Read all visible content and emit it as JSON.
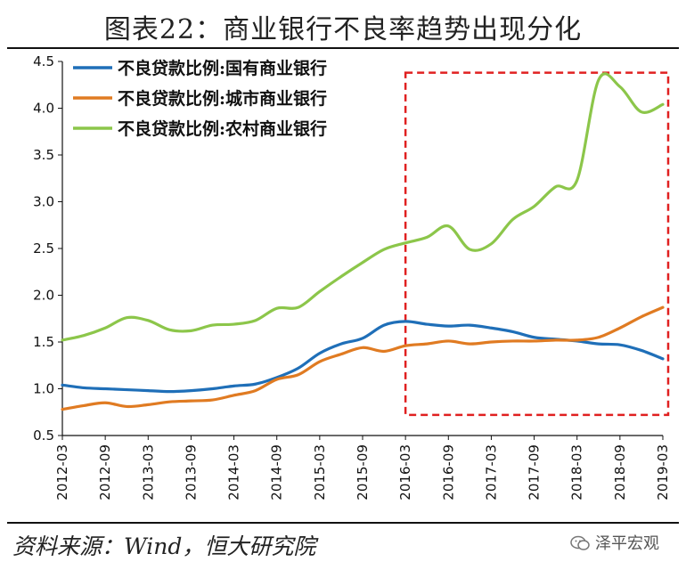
{
  "title": "图表22：商业银行不良率趋势出现分化",
  "source": "资料来源：Wind，恒大研究院",
  "watermark": "泽平宏观",
  "colors": {
    "guoyou": "#1f6fb8",
    "chengshi": "#e07b22",
    "nongcun": "#8cc64a",
    "highlight": "#e02020",
    "axis": "#111111"
  },
  "chart_data": {
    "type": "line",
    "title": "图表22：商业银行不良率趋势出现分化",
    "xlabel": "",
    "ylabel": "",
    "ylim": [
      0.5,
      4.5
    ],
    "yticks": [
      "0.5",
      "1.0",
      "1.5",
      "2.0",
      "2.5",
      "3.0",
      "3.5",
      "4.0",
      "4.5"
    ],
    "x": [
      "2012-03",
      "2012-06",
      "2012-09",
      "2012-12",
      "2013-03",
      "2013-06",
      "2013-09",
      "2013-12",
      "2014-03",
      "2014-06",
      "2014-09",
      "2014-12",
      "2015-03",
      "2015-06",
      "2015-09",
      "2015-12",
      "2016-03",
      "2016-06",
      "2016-09",
      "2016-12",
      "2017-03",
      "2017-06",
      "2017-09",
      "2017-12",
      "2018-03",
      "2018-06",
      "2018-09",
      "2018-12",
      "2019-03"
    ],
    "xticks": [
      "2012-03",
      "2012-09",
      "2013-03",
      "2013-09",
      "2014-03",
      "2014-09",
      "2015-03",
      "2015-09",
      "2016-03",
      "2016-09",
      "2017-03",
      "2017-09",
      "2018-03",
      "2018-09",
      "2019-03"
    ],
    "legend_position": "top-left",
    "grid": false,
    "highlight_box": {
      "x_start": "2016-03",
      "x_end": "2019-03",
      "y_start": 0.72,
      "y_end": 4.38
    },
    "series": [
      {
        "name": "不良贷款比例:国有商业银行",
        "key": "guoyou",
        "values": [
          1.04,
          1.01,
          1.0,
          0.99,
          0.98,
          0.97,
          0.98,
          1.0,
          1.03,
          1.05,
          1.12,
          1.22,
          1.38,
          1.48,
          1.54,
          1.68,
          1.72,
          1.69,
          1.67,
          1.68,
          1.65,
          1.61,
          1.55,
          1.53,
          1.51,
          1.48,
          1.47,
          1.41,
          1.32
        ]
      },
      {
        "name": "不良贷款比例:城市商业银行",
        "key": "chengshi",
        "values": [
          0.78,
          0.82,
          0.85,
          0.81,
          0.83,
          0.86,
          0.87,
          0.88,
          0.93,
          0.98,
          1.1,
          1.15,
          1.29,
          1.37,
          1.44,
          1.4,
          1.46,
          1.48,
          1.51,
          1.48,
          1.5,
          1.51,
          1.51,
          1.52,
          1.52,
          1.55,
          1.65,
          1.77,
          1.87
        ]
      },
      {
        "name": "不良贷款比例:农村商业银行",
        "key": "nongcun",
        "values": [
          1.52,
          1.57,
          1.65,
          1.76,
          1.73,
          1.63,
          1.62,
          1.68,
          1.69,
          1.73,
          1.86,
          1.87,
          2.04,
          2.2,
          2.35,
          2.49,
          2.56,
          2.62,
          2.74,
          2.49,
          2.55,
          2.81,
          2.95,
          3.16,
          3.23,
          4.3,
          4.23,
          3.96,
          4.04
        ]
      }
    ]
  }
}
